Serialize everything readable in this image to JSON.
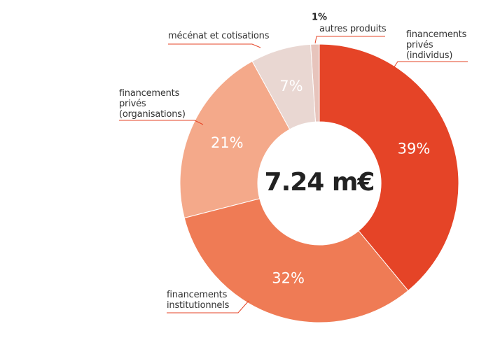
{
  "chart_data": {
    "type": "donut",
    "center_label": "7.24 m€",
    "categories": [
      "financements privés (individus)",
      "financements institutionnels",
      "financements privés (organisations)",
      "mécénat et cotisations",
      "autres produits"
    ],
    "values": [
      39,
      32,
      21,
      7,
      1
    ],
    "value_labels": [
      "39%",
      "32%",
      "21%",
      "7%",
      "1%"
    ],
    "colors": [
      "#e54427",
      "#ef7b55",
      "#f4a98a",
      "#e9d7d2",
      "#e7c4bc"
    ]
  }
}
